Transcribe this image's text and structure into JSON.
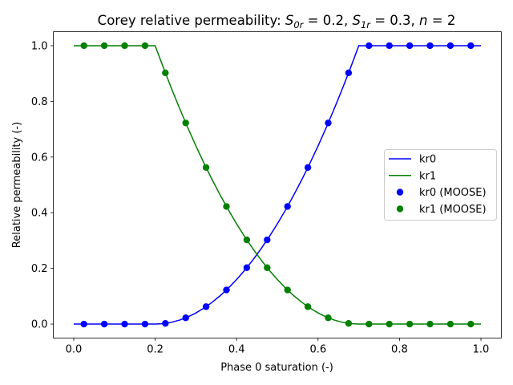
{
  "chart_data": {
    "type": "line",
    "title": {
      "prefix": "Corey relative permeability: ",
      "math": [
        {
          "sym": "S",
          "sub": "0r",
          "val": "0.2"
        },
        {
          "sym": "S",
          "sub": "1r",
          "val": "0.3"
        },
        {
          "sym": "n",
          "sub": "",
          "val": "2"
        }
      ]
    },
    "xlabel": "Phase 0 saturation (-)",
    "ylabel": "Relative permeability (-)",
    "xlim": [
      -0.05,
      1.05
    ],
    "ylim": [
      -0.05,
      1.05
    ],
    "xticks": [
      "0.0",
      "0.2",
      "0.4",
      "0.6",
      "0.8",
      "1.0"
    ],
    "yticks": [
      "0.0",
      "0.2",
      "0.4",
      "0.6",
      "0.8",
      "1.0"
    ],
    "grid": false,
    "legend_position": "center-right",
    "lines": {
      "x": [
        0,
        0.02,
        0.04,
        0.06,
        0.08,
        0.1,
        0.12,
        0.14,
        0.16,
        0.18,
        0.2,
        0.22,
        0.24,
        0.26,
        0.28,
        0.3,
        0.32,
        0.34,
        0.36,
        0.38,
        0.4,
        0.42,
        0.44,
        0.46,
        0.48,
        0.5,
        0.52,
        0.54,
        0.56,
        0.58,
        0.6,
        0.62,
        0.64,
        0.66,
        0.68,
        0.7,
        0.72,
        0.74,
        0.76,
        0.78,
        0.8,
        0.82,
        0.84,
        0.86,
        0.88,
        0.9,
        0.92,
        0.94,
        0.96,
        0.98,
        1.0
      ],
      "series": [
        {
          "name": "kr0",
          "color": "#0000ff",
          "values": [
            0,
            0,
            0,
            0,
            0,
            0,
            0,
            0,
            0,
            0,
            0,
            0.0016,
            0.0064,
            0.0144,
            0.0256,
            0.04,
            0.0576,
            0.0784,
            0.1024,
            0.1296,
            0.16,
            0.1936,
            0.2304,
            0.2704,
            0.3136,
            0.36,
            0.4096,
            0.4624,
            0.5184,
            0.5776,
            0.64,
            0.7056,
            0.7744,
            0.8464,
            0.9216,
            1,
            1,
            1,
            1,
            1,
            1,
            1,
            1,
            1,
            1,
            1,
            1,
            1,
            1,
            1,
            1
          ]
        },
        {
          "name": "kr1",
          "color": "#008000",
          "values": [
            1,
            1,
            1,
            1,
            1,
            1,
            1,
            1,
            1,
            1,
            1,
            0.9216,
            0.8464,
            0.7744,
            0.7056,
            0.64,
            0.5776,
            0.5184,
            0.4624,
            0.4096,
            0.36,
            0.3136,
            0.2704,
            0.2304,
            0.1936,
            0.16,
            0.1296,
            0.1024,
            0.0784,
            0.0576,
            0.04,
            0.0256,
            0.0144,
            0.0064,
            0.0016,
            0,
            0,
            0,
            0,
            0,
            0,
            0,
            0,
            0,
            0,
            0,
            0,
            0,
            0,
            0,
            0
          ]
        }
      ]
    },
    "points": {
      "x": [
        0.025,
        0.075,
        0.125,
        0.175,
        0.225,
        0.275,
        0.325,
        0.375,
        0.425,
        0.475,
        0.525,
        0.575,
        0.625,
        0.675,
        0.725,
        0.775,
        0.825,
        0.875,
        0.925,
        0.975
      ],
      "series": [
        {
          "name": "kr0 (MOOSE)",
          "color": "#0000ff",
          "values": [
            0,
            0,
            0,
            0,
            0.0025,
            0.0225,
            0.0625,
            0.1225,
            0.2025,
            0.3025,
            0.4225,
            0.5625,
            0.7225,
            0.9025,
            1,
            1,
            1,
            1,
            1,
            1
          ]
        },
        {
          "name": "kr1 (MOOSE)",
          "color": "#008000",
          "values": [
            1,
            1,
            1,
            1,
            0.9025,
            0.7225,
            0.5625,
            0.4225,
            0.3025,
            0.2025,
            0.1225,
            0.0625,
            0.0225,
            0.0025,
            0,
            0,
            0,
            0,
            0,
            0
          ]
        }
      ]
    }
  }
}
